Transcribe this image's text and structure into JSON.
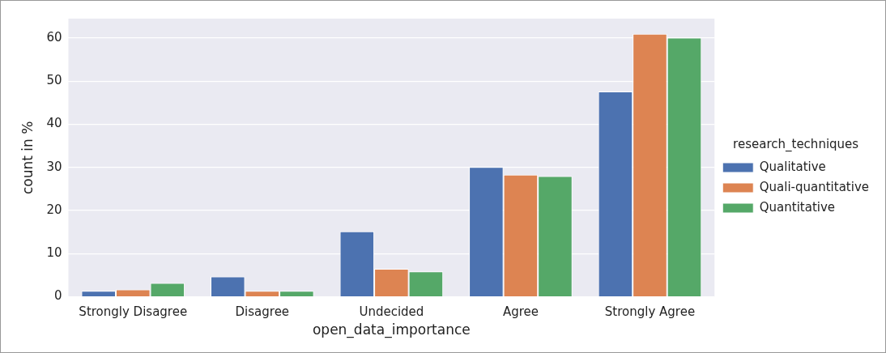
{
  "chart_data": {
    "type": "bar",
    "xlabel": "open_data_importance",
    "ylabel": "count in %",
    "legend_title": "research_techniques",
    "categories": [
      "Strongly Disagree",
      "Disagree",
      "Undecided",
      "Agree",
      "Strongly Agree"
    ],
    "series": [
      {
        "name": "Qualitative",
        "color": "#4c72b0",
        "values": [
          1.4,
          4.7,
          15.2,
          30.1,
          47.6
        ]
      },
      {
        "name": "Quali-quantitative",
        "color": "#dd8452",
        "values": [
          1.7,
          1.4,
          6.5,
          28.3,
          61
        ]
      },
      {
        "name": "Quantitative",
        "color": "#55a868",
        "values": [
          3.2,
          1.4,
          5.9,
          28,
          60.1
        ]
      }
    ],
    "ylim": [
      0,
      64.5
    ],
    "yticks": [
      0,
      10,
      20,
      30,
      40,
      50,
      60
    ],
    "grid": "y",
    "legend": "right"
  }
}
